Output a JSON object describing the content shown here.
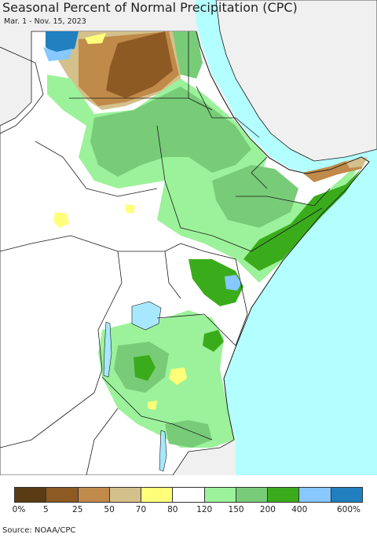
{
  "header": {
    "title": "Seasonal Percent of Normal Precipitation (CPC)",
    "subtitle": "Mar. 1 - Nov. 15, 2023"
  },
  "legend": {
    "colors": [
      "#5a3c14",
      "#8c5a22",
      "#c08a4a",
      "#d3c08a",
      "#ffff7a",
      "#ffffff",
      "#9cf29a",
      "#78cc78",
      "#3aac1c",
      "#86c8ff",
      "#2080c0"
    ],
    "labels": [
      "0%",
      "5",
      "25",
      "50",
      "70",
      "80",
      "120",
      "150",
      "200",
      "400",
      "600%"
    ]
  },
  "map_colors": {
    "ocean": "#b3ffff",
    "outside": "#f0f0f0",
    "land": "#ffffff",
    "border": "#1a1a1a",
    "lake": "#a8e8ff"
  },
  "footer": {
    "source": "Source: NOAA/CPC"
  }
}
